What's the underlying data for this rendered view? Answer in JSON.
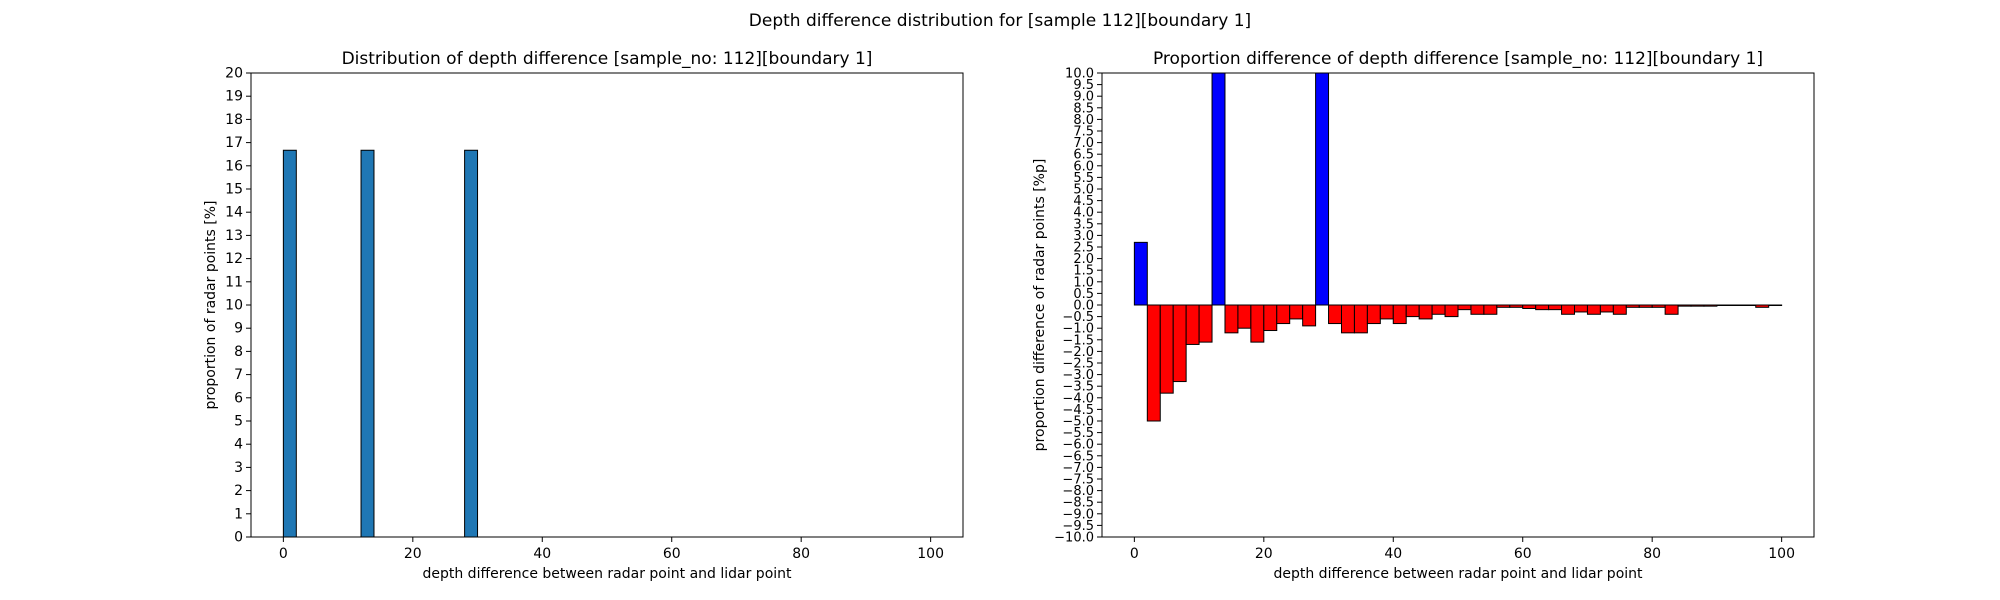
{
  "figure": {
    "suptitle": "Depth difference distribution for [sample 112][boundary 1]"
  },
  "chart_data": [
    {
      "type": "bar",
      "title": "Distribution of depth difference [sample_no: 112][boundary 1]",
      "xlabel": "depth difference between radar point and lidar point",
      "ylabel": "proportion of radar points [%]",
      "xlim": [
        -5,
        105
      ],
      "ylim": [
        0,
        20
      ],
      "xticks": [
        0,
        20,
        40,
        60,
        80,
        100
      ],
      "yticks": [
        0,
        1,
        2,
        3,
        4,
        5,
        6,
        7,
        8,
        9,
        10,
        11,
        12,
        13,
        14,
        15,
        16,
        17,
        18,
        19,
        20
      ],
      "bar_width": 2,
      "bar_color": "#1f77b4",
      "edge_color": "#000000",
      "grid": false,
      "bins": [
        0,
        12,
        28
      ],
      "values": [
        16.67,
        16.67,
        16.67
      ]
    },
    {
      "type": "bar",
      "title": "Proportion difference of depth difference [sample_no: 112][boundary 1]",
      "xlabel": "depth difference between radar point and lidar point",
      "ylabel": "proportion difference of radar points [%p]",
      "xlim": [
        -5,
        105
      ],
      "ylim": [
        -10,
        10
      ],
      "xticks": [
        0,
        20,
        40,
        60,
        80,
        100
      ],
      "yticks": [
        -10.0,
        -9.5,
        -9.0,
        -8.5,
        -8.0,
        -7.5,
        -7.0,
        -6.5,
        -6.0,
        -5.5,
        -5.0,
        -4.5,
        -4.0,
        -3.5,
        -3.0,
        -2.5,
        -2.0,
        -1.5,
        -1.0,
        -0.5,
        0.0,
        0.5,
        1.0,
        1.5,
        2.0,
        2.5,
        3.0,
        3.5,
        4.0,
        4.5,
        5.0,
        5.5,
        6.0,
        6.5,
        7.0,
        7.5,
        8.0,
        8.5,
        9.0,
        9.5,
        10.0
      ],
      "bar_width": 2,
      "positive_color": "#0000ff",
      "negative_color": "#ff0000",
      "edge_color": "#000000",
      "grid": false,
      "bins": [
        0,
        2,
        4,
        6,
        8,
        10,
        12,
        14,
        16,
        18,
        20,
        22,
        24,
        26,
        28,
        30,
        32,
        34,
        36,
        38,
        40,
        42,
        44,
        46,
        48,
        50,
        52,
        54,
        56,
        58,
        60,
        62,
        64,
        66,
        68,
        70,
        72,
        74,
        76,
        78,
        80,
        82,
        84,
        86,
        88,
        90,
        92,
        94,
        96,
        98
      ],
      "values": [
        2.7,
        -5.0,
        -3.8,
        -3.3,
        -1.7,
        -1.6,
        10.0,
        -1.2,
        -1.0,
        -1.6,
        -1.1,
        -0.8,
        -0.6,
        -0.9,
        10.0,
        -0.8,
        -1.2,
        -1.2,
        -0.8,
        -0.6,
        -0.8,
        -0.5,
        -0.6,
        -0.4,
        -0.5,
        -0.2,
        -0.4,
        -0.4,
        -0.1,
        -0.1,
        -0.15,
        -0.2,
        -0.2,
        -0.4,
        -0.3,
        -0.4,
        -0.3,
        -0.4,
        -0.1,
        -0.1,
        -0.1,
        -0.4,
        -0.05,
        -0.05,
        -0.05,
        -0.02,
        -0.02,
        -0.02,
        -0.1,
        -0.02
      ]
    }
  ]
}
